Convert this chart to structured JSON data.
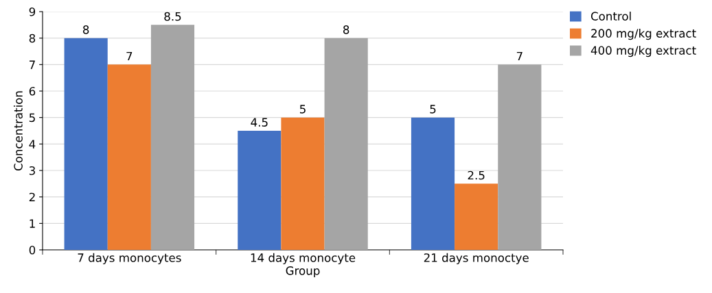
{
  "chart_data": {
    "type": "bar",
    "xlabel": "Group",
    "ylabel": "Concentration",
    "categories": [
      "7 days monocytes",
      "14 days monocyte",
      "21 days monoctye"
    ],
    "series": [
      {
        "name": "Control",
        "color": "#4472c4",
        "values": [
          8,
          4.5,
          5
        ]
      },
      {
        "name": "200 mg/kg extract",
        "color": "#ed7d31",
        "values": [
          7,
          5,
          2.5
        ]
      },
      {
        "name": "400 mg/kg extract",
        "color": "#a5a5a5",
        "values": [
          8.5,
          8,
          7
        ]
      }
    ],
    "ylim": [
      0,
      9
    ],
    "yticks": [
      0,
      1,
      2,
      3,
      4,
      5,
      6,
      7,
      8,
      9
    ],
    "grid": "y",
    "legend": "top right",
    "data_labels": true
  }
}
